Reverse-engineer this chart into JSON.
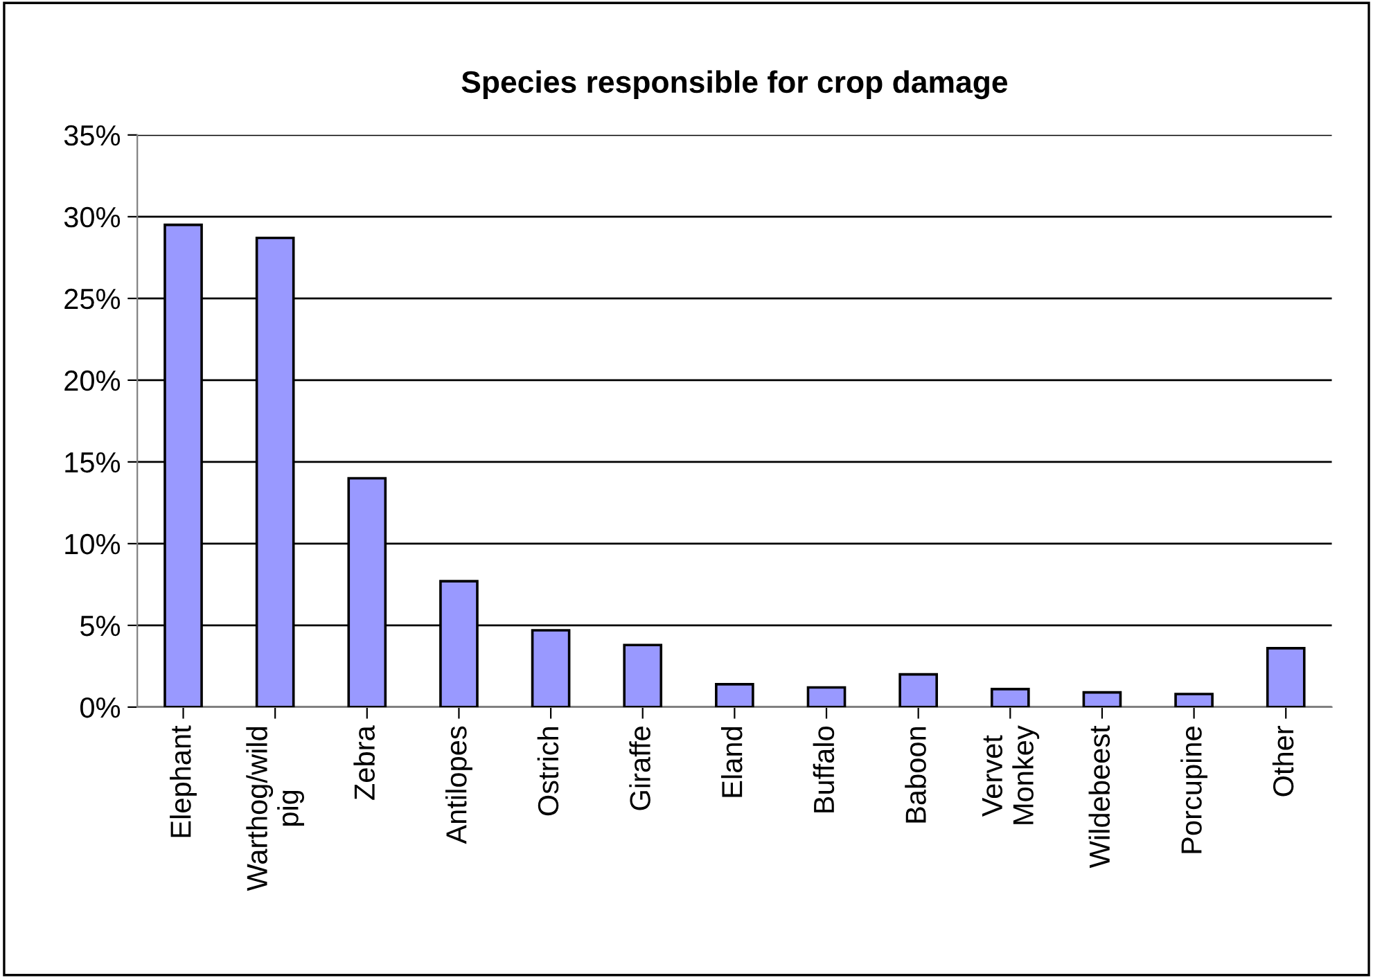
{
  "chart_data": {
    "type": "bar",
    "title": "Species responsible for crop damage",
    "categories": [
      "Elephant",
      "Warthog/wild\npig",
      "Zebra",
      "Antilopes",
      "Ostrich",
      "Giraffe",
      "Eland",
      "Buffalo",
      "Baboon",
      "Vervet\nMonkey",
      "Wildebeest",
      "Porcupine",
      "Other"
    ],
    "values": [
      29.5,
      28.7,
      14.0,
      7.7,
      4.7,
      3.8,
      1.4,
      1.2,
      2.0,
      1.1,
      0.9,
      0.8,
      3.6
    ],
    "color": "#9999ff",
    "ylim": [
      0,
      35
    ],
    "yticks": [
      {
        "value": 0,
        "label": "0%"
      },
      {
        "value": 5,
        "label": "5%"
      },
      {
        "value": 10,
        "label": "10%"
      },
      {
        "value": 15,
        "label": "15%"
      },
      {
        "value": 20,
        "label": "20%"
      },
      {
        "value": 25,
        "label": "25%"
      },
      {
        "value": 30,
        "label": "30%"
      },
      {
        "value": 35,
        "label": "35%"
      }
    ],
    "grid": "y"
  }
}
